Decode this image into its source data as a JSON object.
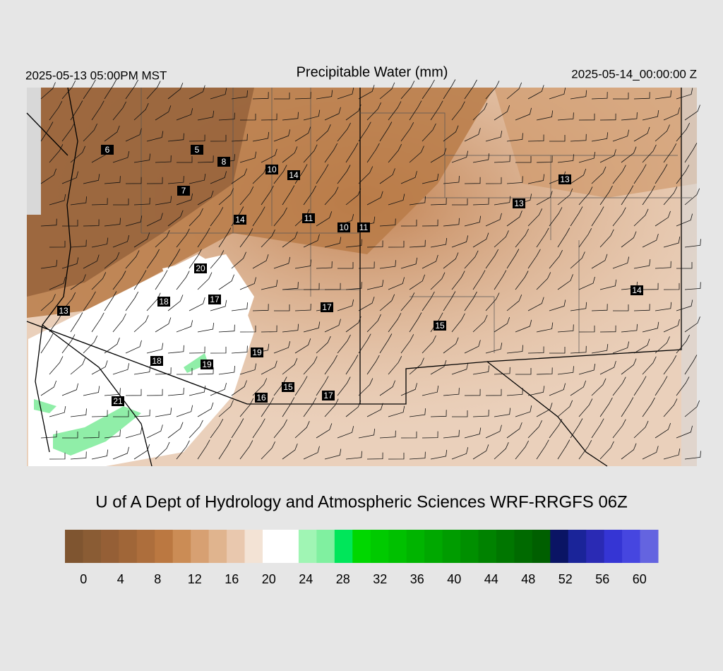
{
  "header": {
    "left": "2025-05-13 05:00PM MST",
    "title": "Precipitable Water (mm)",
    "right": "2025-05-14_00:00:00 Z"
  },
  "credit": "U of A Dept of Hydrology and Atmospheric Sciences WRF-RRGFS 06Z",
  "station_values": [
    6,
    5,
    8,
    10,
    14,
    7,
    14,
    11,
    10,
    11,
    13,
    13,
    20,
    18,
    17,
    17,
    13,
    14,
    15,
    19,
    18,
    19,
    21,
    15,
    16,
    17
  ],
  "colorbar": {
    "lim": [
      -2,
      62
    ],
    "colors": [
      "#7f5530",
      "#8a5c34",
      "#955f36",
      "#a06638",
      "#ad6e3c",
      "#bb7841",
      "#cb8c55",
      "#d7a072",
      "#e0b48e",
      "#e9c8ae",
      "#f3e3d5",
      "#ffffff",
      "#ffffff",
      "#a0f5b4",
      "#80f0a0",
      "#00e65a",
      "#00d700",
      "#00ca00",
      "#00c000",
      "#00b400",
      "#00a800",
      "#009c00",
      "#008f00",
      "#008200",
      "#007600",
      "#006a00",
      "#005f00",
      "#0a1464",
      "#1a2499",
      "#2a2ab4",
      "#3535d4",
      "#4646e0",
      "#6464e0"
    ],
    "ticks": [
      0,
      4,
      8,
      12,
      16,
      20,
      24,
      28,
      32,
      36,
      40,
      44,
      48,
      52,
      56,
      60
    ]
  }
}
